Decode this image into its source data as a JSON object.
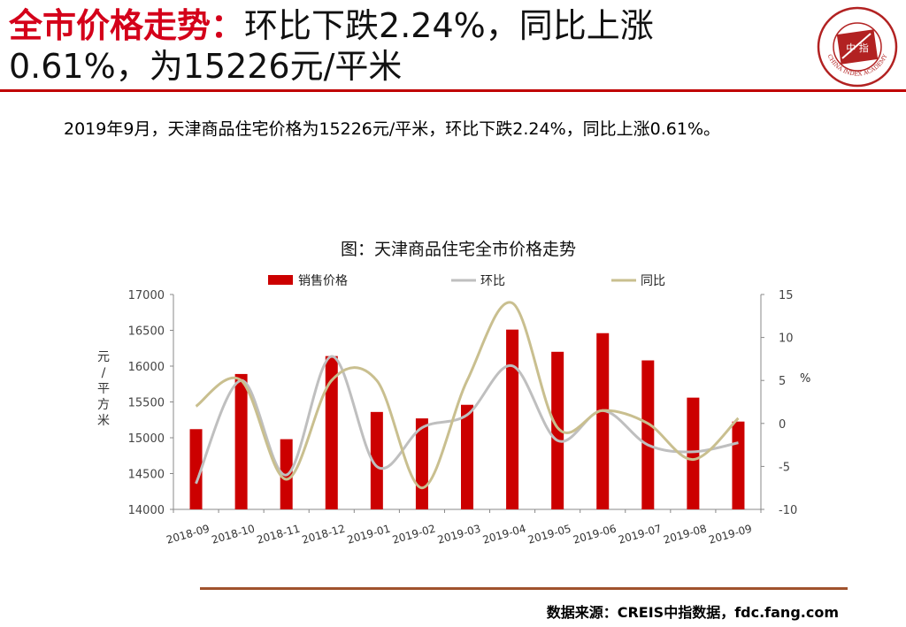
{
  "header": {
    "title_accent": "全市价格走势：",
    "title_line1_rest": "环比下跌2.24%，同比上涨",
    "title_line2": "0.61%，为15226元/平米"
  },
  "logo": {
    "center_text": "中 指",
    "ring_text": "CHINA INDEX ACADEMY"
  },
  "summary": "2019年9月，天津商品住宅价格为15226元/平米，环比下跌2.24%，同比上涨0.61%。",
  "chart_data": {
    "type": "bar",
    "title": "图：天津商品住宅全市价格走势",
    "categories": [
      "2018-09",
      "2018-10",
      "2018-11",
      "2018-12",
      "2019-01",
      "2019-02",
      "2019-03",
      "2019-04",
      "2019-05",
      "2019-06",
      "2019-07",
      "2019-08",
      "2019-09"
    ],
    "series": [
      {
        "name": "销售价格",
        "axis": "left",
        "type": "bar",
        "values": [
          15120,
          15890,
          14980,
          16140,
          15360,
          15270,
          15460,
          16510,
          16200,
          16460,
          16080,
          15560,
          15226
        ]
      },
      {
        "name": "环比",
        "axis": "right",
        "type": "line",
        "values": [
          -7.0,
          5.0,
          -6.0,
          7.8,
          -5.0,
          -0.5,
          1.0,
          6.7,
          -2.0,
          1.5,
          -2.5,
          -3.3,
          -2.24
        ]
      },
      {
        "name": "同比",
        "axis": "right",
        "type": "line",
        "values": [
          2.0,
          5.0,
          -6.5,
          5.0,
          5.0,
          -7.5,
          5.0,
          14.0,
          -0.5,
          1.5,
          0.0,
          -4.2,
          0.61
        ]
      }
    ],
    "ylabel_left": "元/平方米",
    "ylabel_right": "%",
    "ylim_left": [
      14000,
      17000
    ],
    "yticks_left": [
      "14000",
      "14500",
      "15000",
      "15500",
      "16000",
      "16500",
      "17000"
    ],
    "ylim_right": [
      -10,
      15
    ],
    "yticks_right": [
      "-10",
      "-5",
      "0",
      "5",
      "10",
      "15"
    ],
    "legend_position": "top",
    "grid": false,
    "colors": {
      "bar": "#cc0000",
      "mom": "#bfbfbf",
      "yoy": "#c9bf8f"
    }
  },
  "footer": {
    "source": "数据来源：CREIS中指数据，fdc.fang.com"
  }
}
